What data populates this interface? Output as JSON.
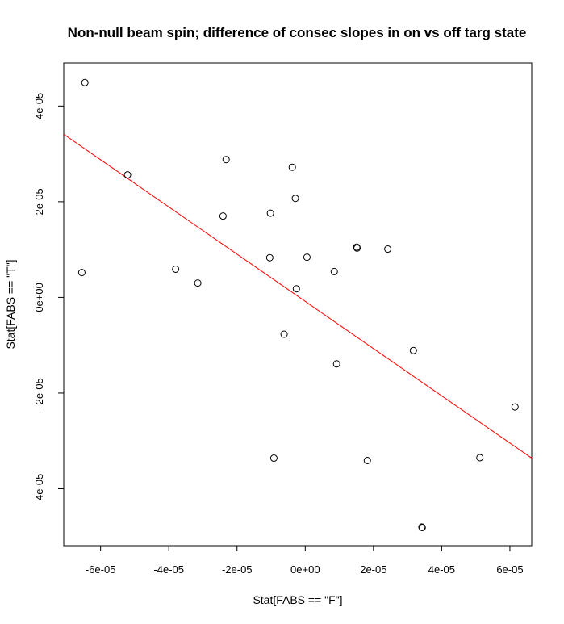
{
  "chart_data": {
    "type": "scatter",
    "title": "Non-null beam spin; difference of consec slopes in on vs off targ state",
    "xlabel": "Stat[FABS == \"F\"]",
    "ylabel": "Stat[FABS == \"T\"]",
    "xlim": [
      -7.08e-05,
      6.64e-05
    ],
    "ylim": [
      -5.19e-05,
      4.9e-05
    ],
    "x_ticks": [
      {
        "value": -6e-05,
        "label": "-6e-05"
      },
      {
        "value": -4e-05,
        "label": "-4e-05"
      },
      {
        "value": -2e-05,
        "label": "-2e-05"
      },
      {
        "value": 0,
        "label": "0e+00"
      },
      {
        "value": 2e-05,
        "label": "2e-05"
      },
      {
        "value": 4e-05,
        "label": "4e-05"
      },
      {
        "value": 6e-05,
        "label": "6e-05"
      }
    ],
    "y_ticks": [
      {
        "value": -4e-05,
        "label": "-4e-05"
      },
      {
        "value": -2e-05,
        "label": "-2e-05"
      },
      {
        "value": 0,
        "label": "0e+00"
      },
      {
        "value": 2e-05,
        "label": "2e-05"
      },
      {
        "value": 4e-05,
        "label": "4e-05"
      }
    ],
    "grid": false,
    "point_color": "#000000",
    "line_color": "#ff0000",
    "points": [
      {
        "x": -6.46e-05,
        "y": 4.49e-05
      },
      {
        "x": -6.55e-05,
        "y": 5.2e-06
      },
      {
        "x": -5.21e-05,
        "y": 2.56e-05
      },
      {
        "x": -3.8e-05,
        "y": 5.9e-06
      },
      {
        "x": -3.15e-05,
        "y": 3e-06
      },
      {
        "x": -2.41e-05,
        "y": 1.7e-05
      },
      {
        "x": -2.32e-05,
        "y": 2.88e-05
      },
      {
        "x": -1.04e-05,
        "y": 8.3e-06
      },
      {
        "x": -1.02e-05,
        "y": 1.76e-05
      },
      {
        "x": -9.2e-06,
        "y": -3.36e-05
      },
      {
        "x": -6.2e-06,
        "y": -7.7e-06
      },
      {
        "x": -3.8e-06,
        "y": 2.72e-05
      },
      {
        "x": -2.9e-06,
        "y": 2.07e-05
      },
      {
        "x": -2.6e-06,
        "y": 1.8e-06
      },
      {
        "x": 5e-07,
        "y": 8.4e-06
      },
      {
        "x": 8.5e-06,
        "y": 5.4e-06
      },
      {
        "x": 9.2e-06,
        "y": -1.39e-05
      },
      {
        "x": 1.51e-05,
        "y": 1.05e-05
      },
      {
        "x": 1.52e-05,
        "y": 1.03e-05
      },
      {
        "x": 1.82e-05,
        "y": -3.41e-05
      },
      {
        "x": 2.42e-05,
        "y": 1.01e-05
      },
      {
        "x": 3.17e-05,
        "y": -1.11e-05
      },
      {
        "x": 3.42e-05,
        "y": -4.8e-05
      },
      {
        "x": 3.43e-05,
        "y": -4.81e-05
      },
      {
        "x": 5.12e-05,
        "y": -3.35e-05
      },
      {
        "x": 6.15e-05,
        "y": -2.29e-05
      }
    ],
    "fit_line": {
      "x": [
        -7.08e-05,
        6.64e-05
      ],
      "y": [
        3.41e-05,
        -3.36e-05
      ]
    }
  }
}
